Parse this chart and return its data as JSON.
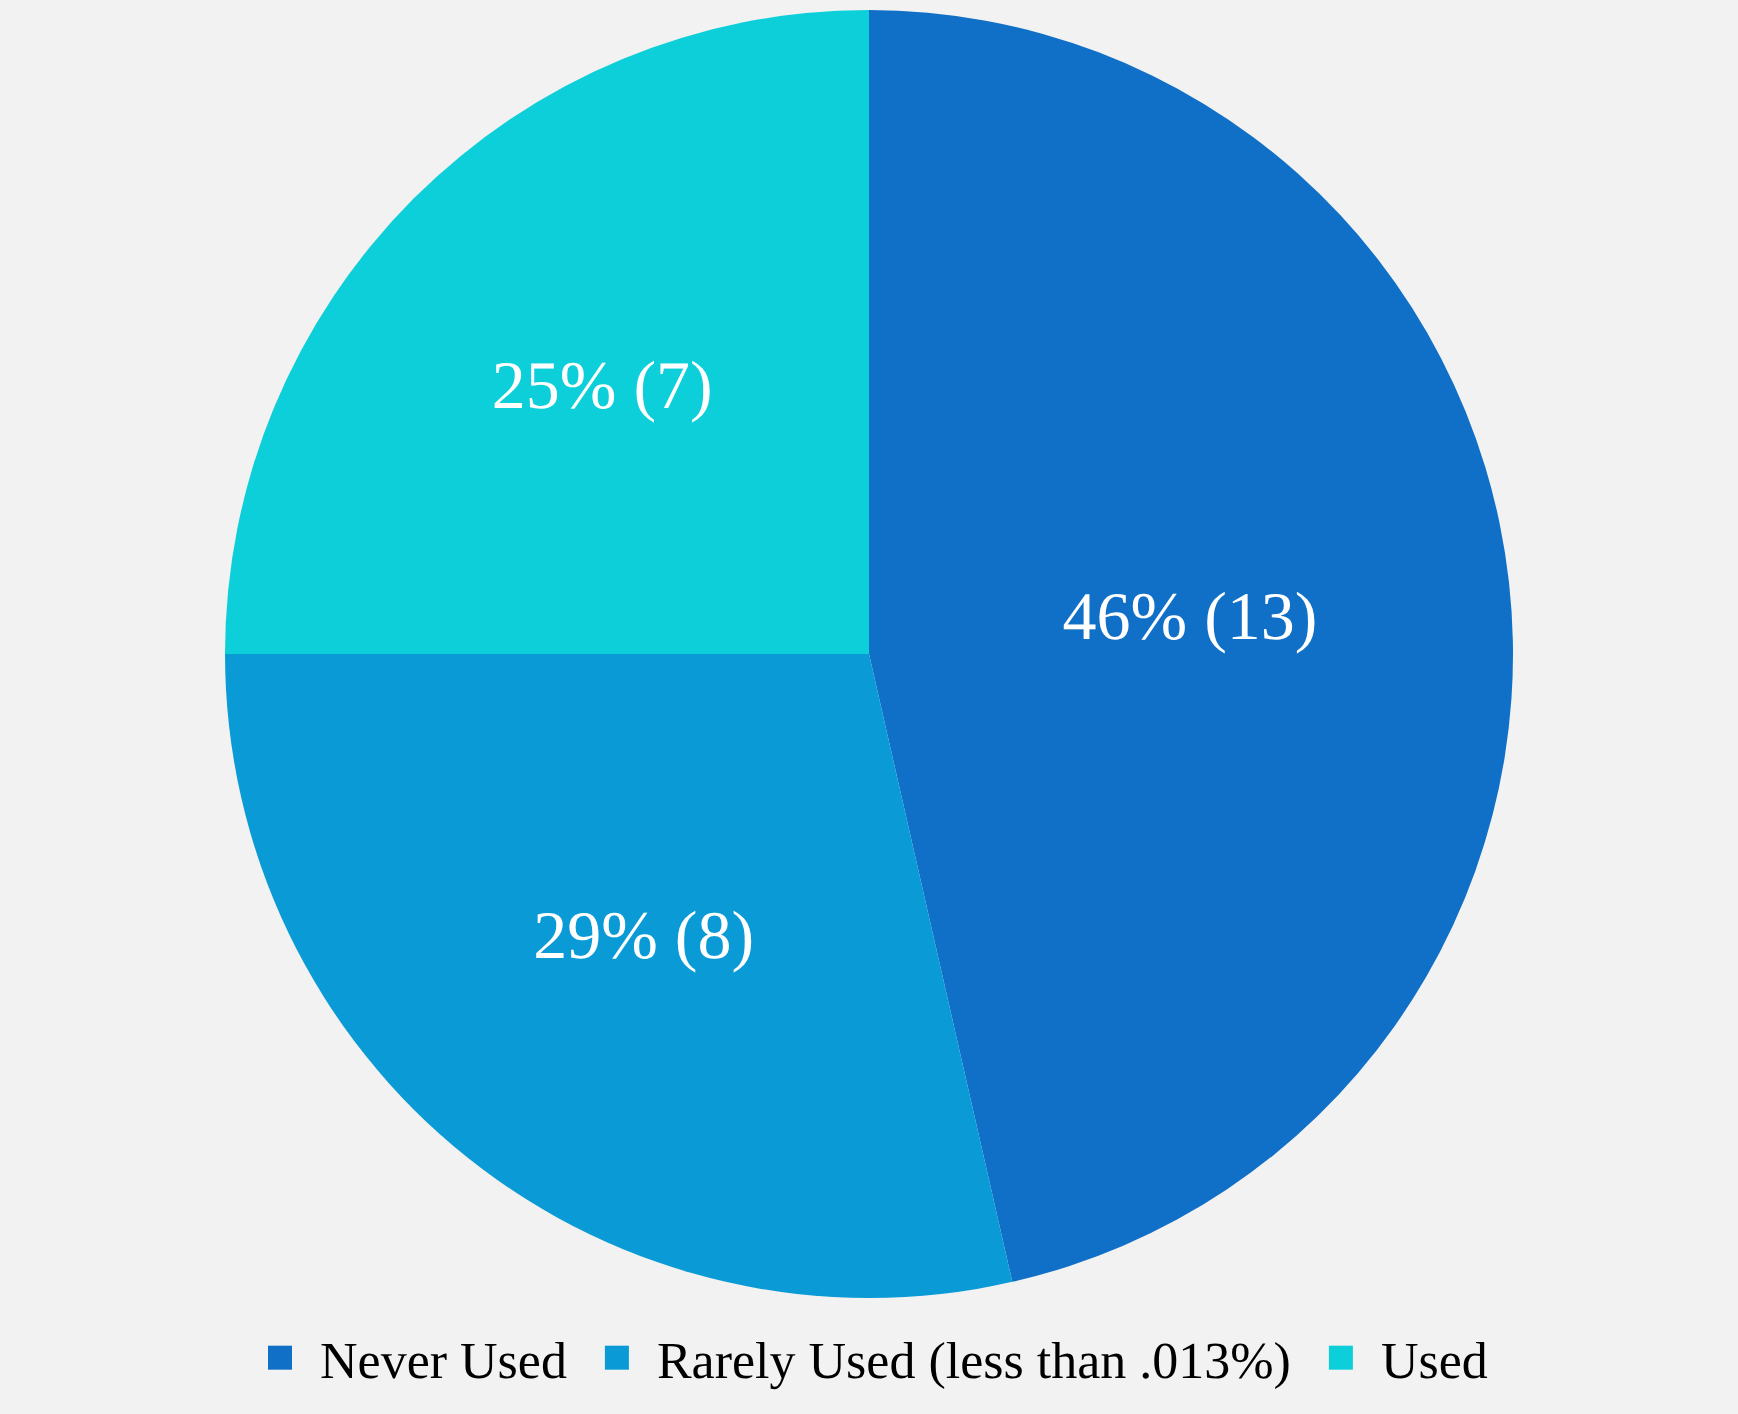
{
  "chart_data": {
    "type": "pie",
    "categories": [
      "Never Used",
      "Rarely Used (less than .013%)",
      "Used"
    ],
    "values": [
      13,
      8,
      7
    ],
    "colors": [
      "#106fc6",
      "#0a9bd6",
      "#0dcfd9"
    ],
    "value_labels": [
      "46% (13)",
      "29% (8)",
      "25% (7)"
    ],
    "legend": "bottom"
  }
}
